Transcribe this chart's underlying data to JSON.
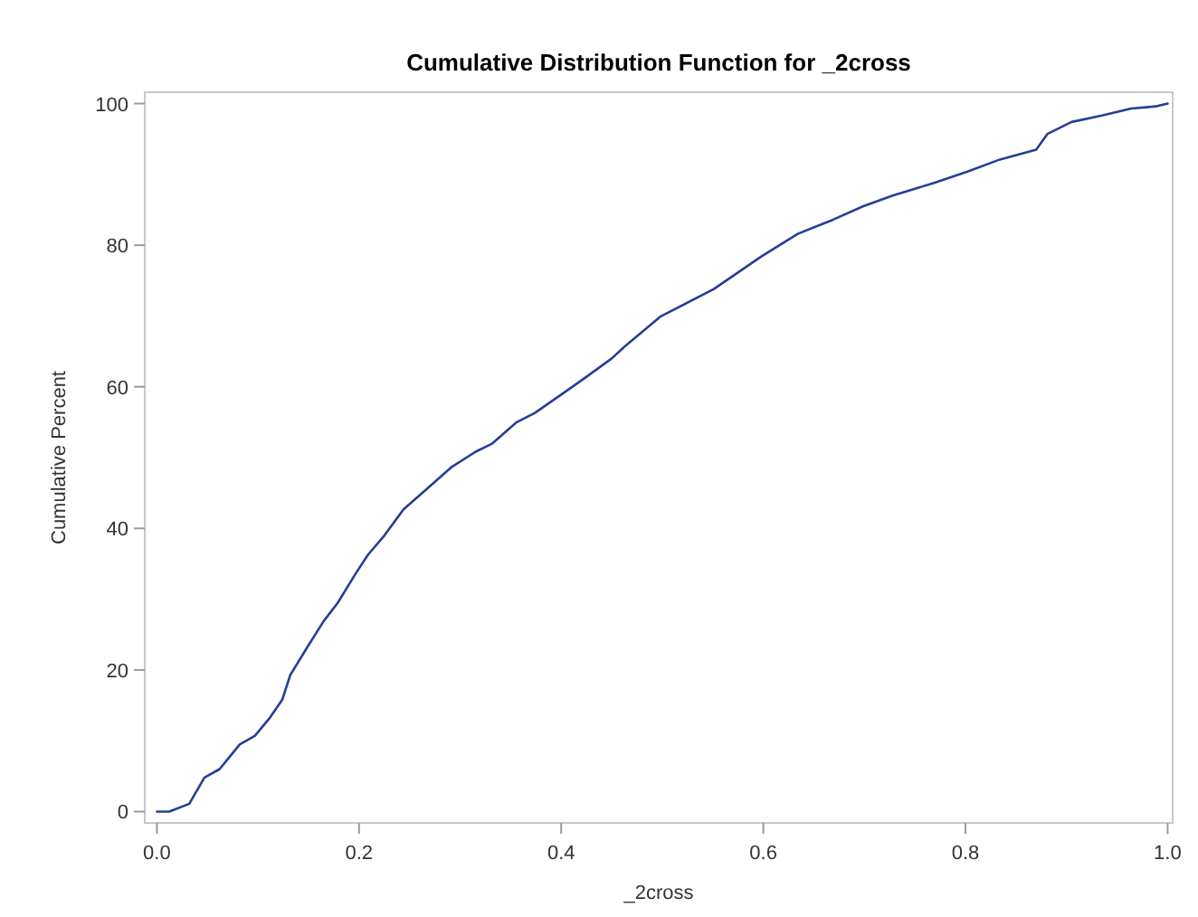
{
  "chart_data": {
    "type": "line",
    "title": "Cumulative Distribution Function for _2cross",
    "xlabel": "_2cross",
    "ylabel": "Cumulative Percent",
    "xlim": [
      -0.012,
      1.005
    ],
    "ylim": [
      -1.6,
      101.6
    ],
    "xticks": [
      {
        "value": 0,
        "label": "0.0"
      },
      {
        "value": 0.2,
        "label": "0.2"
      },
      {
        "value": 0.4,
        "label": "0.4"
      },
      {
        "value": 0.6,
        "label": "0.6"
      },
      {
        "value": 0.8,
        "label": "0.8"
      },
      {
        "value": 1,
        "label": "1.0"
      }
    ],
    "yticks": [
      0,
      20,
      40,
      60,
      80,
      100
    ],
    "marker": "none",
    "line_style": "solid",
    "series": [
      {
        "color": "#233f96",
        "x": [
          0,
          0.012,
          0.032,
          0.047,
          0.062,
          0.082,
          0.097,
          0.112,
          0.124,
          0.132,
          0.15,
          0.165,
          0.179,
          0.197,
          0.209,
          0.224,
          0.244,
          0.268,
          0.291,
          0.315,
          0.332,
          0.356,
          0.374,
          0.4,
          0.421,
          0.45,
          0.463,
          0.498,
          0.551,
          0.598,
          0.634,
          0.669,
          0.699,
          0.728,
          0.769,
          0.802,
          0.834,
          0.87,
          0.881,
          0.905,
          0.935,
          0.964,
          0.988,
          1.0
        ],
        "values": [
          0,
          0,
          1.1,
          4.8,
          6,
          9.5,
          10.7,
          13.3,
          15.8,
          19.3,
          23.5,
          26.9,
          29.5,
          33.7,
          36.3,
          38.8,
          42.7,
          45.7,
          48.6,
          50.8,
          52,
          55,
          56.3,
          58.9,
          61,
          64,
          65.7,
          69.9,
          73.8,
          78.4,
          81.6,
          83.6,
          85.5,
          87,
          88.8,
          90.4,
          92.1,
          93.5,
          95.7,
          97.4,
          98.3,
          99.3,
          99.6,
          100
        ]
      }
    ]
  }
}
